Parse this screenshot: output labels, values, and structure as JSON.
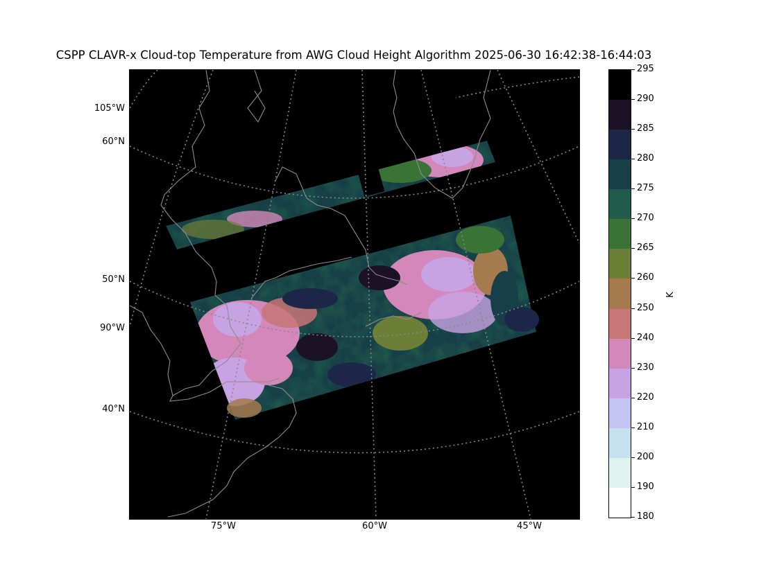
{
  "title": "CSPP CLAVR-x Cloud-top Temperature from AWG Cloud Height Algorithm 2025-06-30 16:42:38-16:44:03",
  "map": {
    "lat_labels": [
      "60°N",
      "50°N",
      "40°N"
    ],
    "lon_left_labels": [
      "105°W",
      "90°W"
    ],
    "lon_bottom_labels": [
      "75°W",
      "60°W",
      "45°W"
    ],
    "graticule_color": "#888888",
    "coast_color": "#8c8c8c"
  },
  "colorbar": {
    "unit": "K",
    "ticks": [
      "295",
      "290",
      "285",
      "280",
      "275",
      "270",
      "265",
      "260",
      "250",
      "240",
      "230",
      "220",
      "210",
      "200",
      "190",
      "180"
    ],
    "colors": [
      "#000000",
      "#1c1226",
      "#1c2747",
      "#173f48",
      "#1f5d4a",
      "#3a7336",
      "#6d7e36",
      "#a57a4c",
      "#c87676",
      "#d387bb",
      "#c8a3e4",
      "#c3c4f1",
      "#c5e0ef",
      "#dff2ee",
      "#ffffff"
    ]
  }
}
